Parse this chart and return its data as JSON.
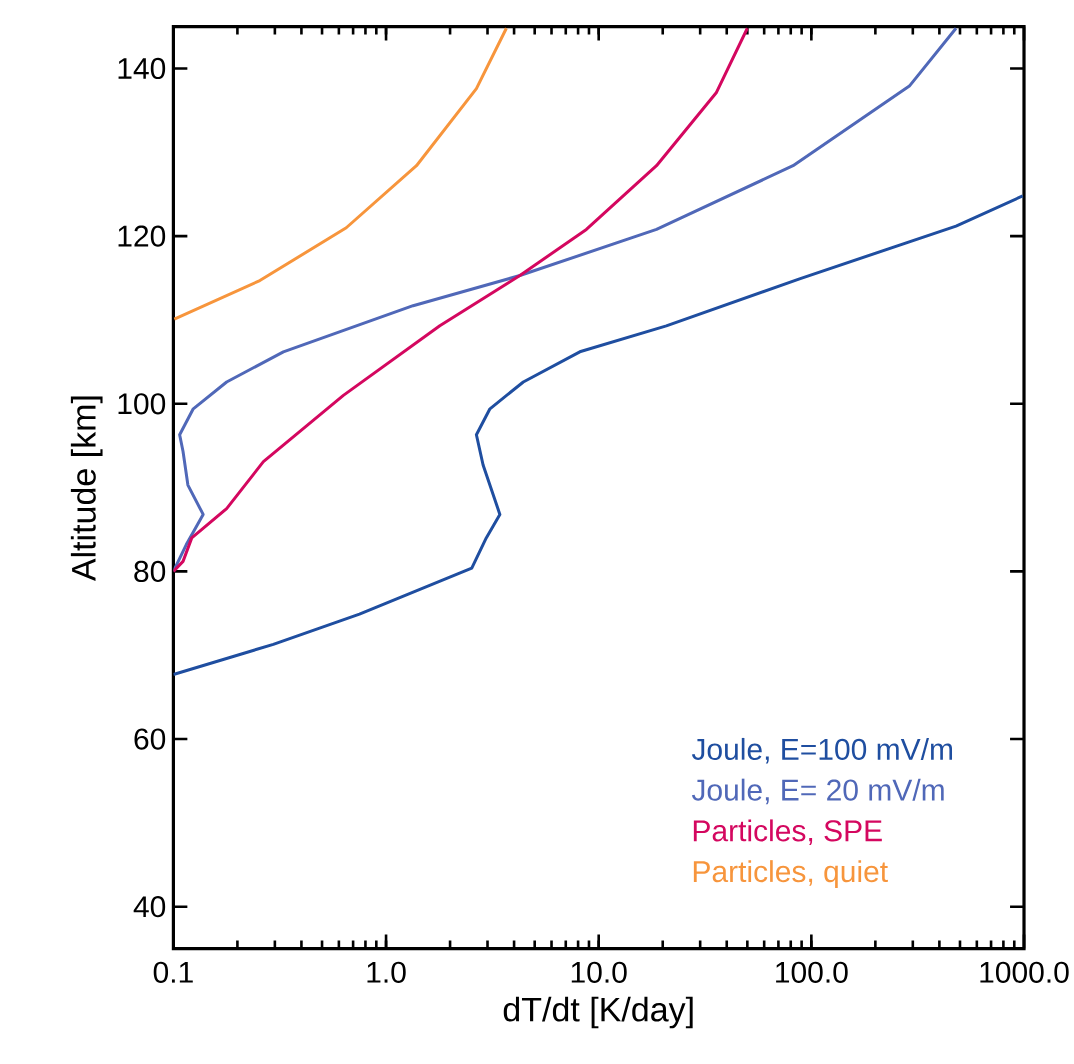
{
  "chart_data": {
    "type": "line",
    "xlabel": "dT/dt [K/day]",
    "ylabel": "Altitude [km]",
    "log": "x",
    "xlim": [
      0.1,
      1000
    ],
    "ylim": [
      35,
      145
    ],
    "xticks": [
      {
        "value": 0.1,
        "label": "0.1"
      },
      {
        "value": 1,
        "label": "1.0"
      },
      {
        "value": 10,
        "label": "10.0"
      },
      {
        "value": 100,
        "label": "100.0"
      },
      {
        "value": 1000,
        "label": "1000.0"
      }
    ],
    "yticks": [
      40,
      60,
      80,
      100,
      120,
      140
    ],
    "legend": "bottom right",
    "grid": false,
    "marker": "none",
    "line_style": "solid",
    "series": [
      {
        "name": "Joule, E=100 mV/m",
        "color": "#1f4ea0",
        "x": [
          0.1,
          0.295,
          0.75,
          2.53,
          2.96,
          3.43,
          2.86,
          2.66,
          3.08,
          4.42,
          8.15,
          20.8,
          88,
          479,
          986
        ],
        "values": [
          67.7,
          71.3,
          74.9,
          80.4,
          84.0,
          86.8,
          92.7,
          96.3,
          99.4,
          102.6,
          106.2,
          109.3,
          114.9,
          121.2,
          124.8
        ]
      },
      {
        "name": "Joule, E= 20 mV/m",
        "color": "#5068b8",
        "x": [
          0.1,
          0.115,
          0.138,
          0.117,
          0.111,
          0.107,
          0.124,
          0.178,
          0.329,
          1.34,
          4.26,
          18.7,
          82,
          289,
          479
        ],
        "values": [
          80.0,
          83.2,
          86.8,
          90.3,
          94.3,
          96.3,
          99.4,
          102.6,
          106.2,
          111.7,
          115.3,
          120.8,
          128.4,
          137.9,
          144.8
        ]
      },
      {
        "name": "Particles, SPE",
        "color": "#d4075f",
        "x": [
          0.1,
          0.111,
          0.122,
          0.178,
          0.265,
          0.63,
          1.79,
          4.26,
          8.75,
          18.7,
          35.7,
          50
        ],
        "values": [
          80.0,
          81.2,
          84.0,
          87.5,
          93.1,
          101.0,
          109.3,
          115.3,
          120.8,
          128.4,
          137.1,
          144.8
        ]
      },
      {
        "name": "Particles, quiet",
        "color": "#f7953c",
        "x": [
          0.101,
          0.255,
          0.65,
          1.39,
          2.66,
          3.68
        ],
        "values": [
          110.1,
          114.7,
          121.0,
          128.4,
          137.6,
          144.8
        ]
      }
    ]
  }
}
